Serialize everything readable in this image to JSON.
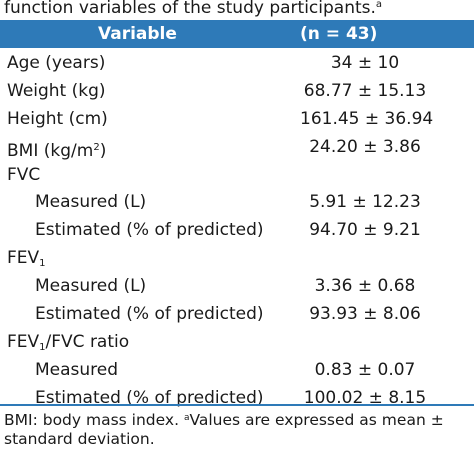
{
  "caption": {
    "text": "function variables of the study participants.",
    "marker": "a"
  },
  "header": {
    "col1": "Variable",
    "col2": "(n  =  43)"
  },
  "rows": [
    {
      "label": "Age (years)",
      "value": "34 ± 10"
    },
    {
      "label": "Weight (kg)",
      "value": "68.77 ± 15.13"
    },
    {
      "label": "Height (cm)",
      "value": "161.45 ± 36.94"
    },
    {
      "label_pre": "BMI (kg/m",
      "label_sup": "2",
      "label_post": ")",
      "value": "24.20 ± 3.86"
    },
    {
      "label": "FVC",
      "value": ""
    },
    {
      "label": "Measured (L)",
      "value": "5.91 ± 12.23"
    },
    {
      "label": "Estimated (% of predicted)",
      "value": "94.70 ± 9.21"
    },
    {
      "label_pre": "FEV",
      "label_sub": "1",
      "value": ""
    },
    {
      "label": "Measured (L)",
      "value": "3.36 ± 0.68"
    },
    {
      "label": "Estimated (% of predicted)",
      "value": "93.93 ± 8.06"
    },
    {
      "label_pre": "FEV",
      "label_sub": "1",
      "label_post": "/FVC ratio",
      "value": ""
    },
    {
      "label": "Measured",
      "value": "0.83 ± 0.07"
    },
    {
      "label": "Estimated (% of predicted)",
      "value": "100.02 ± 8.15"
    }
  ],
  "footnote": {
    "part1": "BMI: body mass index. ",
    "marker": "a",
    "part2": "Values are expressed as mean ± standard deviation."
  },
  "colors": {
    "header_bg": "#2e7ab8",
    "header_text": "#ffffff",
    "rule": "#2e7ab8"
  }
}
